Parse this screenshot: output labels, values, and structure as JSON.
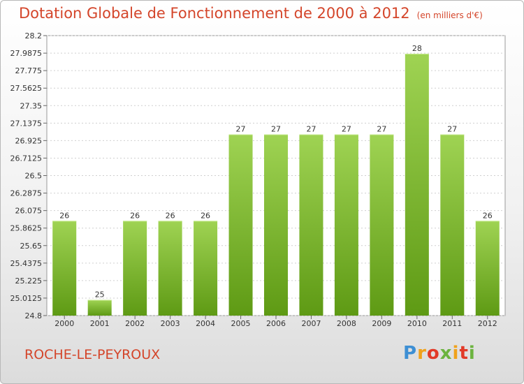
{
  "header": {
    "title": "Dotation Globale de Fonctionnement de 2000 à 2012",
    "subtitle": "(en milliers d'€)"
  },
  "footer": {
    "city": "ROCHE-LE-PEYROUX",
    "logo": [
      "P",
      "r",
      "o",
      "x",
      "i",
      "t",
      "i"
    ]
  },
  "colors": {
    "title": "#d4452a",
    "bar_top": "#9fd353",
    "bar_bottom": "#5e9a14"
  },
  "chart_data": {
    "type": "bar",
    "title": "Dotation Globale de Fonctionnement de 2000 à 2012",
    "subtitle": "(en milliers d'€)",
    "categories": [
      "2000",
      "2001",
      "2002",
      "2003",
      "2004",
      "2005",
      "2006",
      "2007",
      "2008",
      "2009",
      "2010",
      "2011",
      "2012"
    ],
    "values": [
      26,
      25,
      26,
      26,
      26,
      27,
      27,
      27,
      27,
      27,
      28,
      27,
      26
    ],
    "bar_heights": [
      25.95,
      24.99,
      25.95,
      25.95,
      25.95,
      27.0,
      27.0,
      27.0,
      27.0,
      27.0,
      27.98,
      27.0,
      25.95
    ],
    "value_labels": [
      "26",
      "25",
      "26",
      "26",
      "26",
      "27",
      "27",
      "27",
      "27",
      "27",
      "28",
      "27",
      "26"
    ],
    "yticks": [
      "24.8",
      "25.0125",
      "25.225",
      "25.4375",
      "25.65",
      "25.8625",
      "26.075",
      "26.2875",
      "26.5",
      "26.7125",
      "26.925",
      "27.1375",
      "27.35",
      "27.5625",
      "27.775",
      "27.9875",
      "28.2"
    ],
    "ylim": [
      24.8,
      28.2
    ],
    "grid": true,
    "xlabel": "",
    "ylabel": ""
  }
}
